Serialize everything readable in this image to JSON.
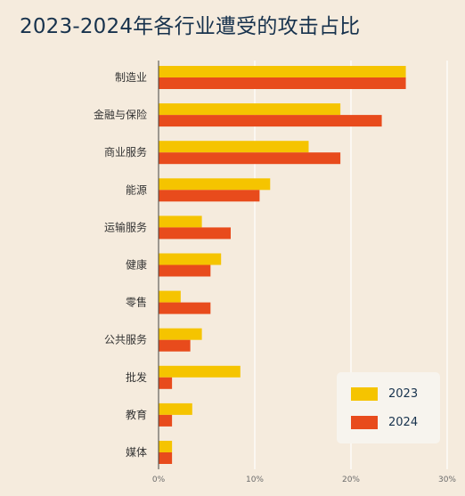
{
  "chart_data": {
    "type": "bar",
    "orientation": "horizontal",
    "title": "2023-2024年各行业遭受的攻击占比",
    "categories": [
      "制造业",
      "金融与保险",
      "商业服务",
      "能源",
      "运输服务",
      "健康",
      "零售",
      "公共服务",
      "批发",
      "教育",
      "媒体"
    ],
    "series": [
      {
        "name": "2023",
        "color": "#f5c400",
        "values": [
          25.7,
          18.9,
          15.6,
          11.6,
          4.5,
          6.5,
          2.3,
          4.5,
          8.5,
          3.5,
          1.4
        ]
      },
      {
        "name": "2024",
        "color": "#e84b1c",
        "values": [
          25.7,
          23.2,
          18.9,
          10.5,
          7.5,
          5.4,
          5.4,
          3.3,
          1.4,
          1.4,
          1.4
        ]
      }
    ],
    "xlim": [
      0,
      30
    ],
    "xticks": [
      "0%",
      "10%",
      "20%",
      "30%"
    ],
    "grid": true,
    "legend_position": "bottom-right"
  }
}
